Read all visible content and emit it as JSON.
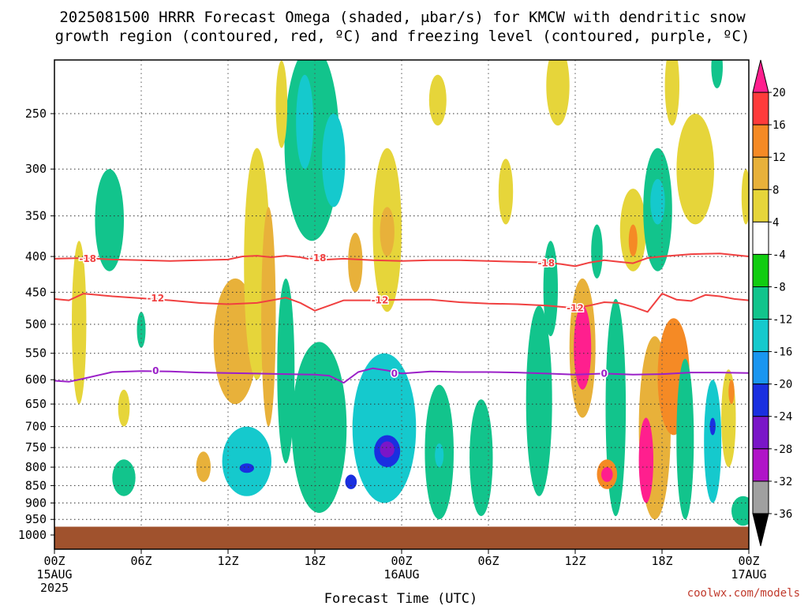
{
  "chart_data": {
    "type": "heatmap",
    "title_line1": "2025081500 HRRR Forecast Omega (shaded, μbar/s) for KMCW with dendritic snow",
    "title_line2": "growth region (contoured, red, ºC) and freezing level (contoured, purple, ºC)",
    "xlabel": "Forecast Time (UTC)",
    "ylabel": "",
    "credit": "coolwx.com/models",
    "x_ticks": [
      {
        "hour": 0,
        "label": "00Z",
        "sub1": "15AUG",
        "sub2": "2025"
      },
      {
        "hour": 6,
        "label": "06Z",
        "sub1": "",
        "sub2": ""
      },
      {
        "hour": 12,
        "label": "12Z",
        "sub1": "",
        "sub2": ""
      },
      {
        "hour": 18,
        "label": "18Z",
        "sub1": "",
        "sub2": ""
      },
      {
        "hour": 24,
        "label": "00Z",
        "sub1": "16AUG",
        "sub2": ""
      },
      {
        "hour": 30,
        "label": "06Z",
        "sub1": "",
        "sub2": ""
      },
      {
        "hour": 36,
        "label": "12Z",
        "sub1": "",
        "sub2": ""
      },
      {
        "hour": 42,
        "label": "18Z",
        "sub1": "",
        "sub2": ""
      },
      {
        "hour": 48,
        "label": "00Z",
        "sub1": "17AUG",
        "sub2": ""
      }
    ],
    "xlim": [
      0,
      48
    ],
    "y_ticks": [
      250,
      300,
      350,
      400,
      450,
      500,
      550,
      600,
      650,
      700,
      750,
      800,
      850,
      900,
      950,
      1000
    ],
    "ylim": [
      1000,
      200
    ],
    "y_scale": "log",
    "grid": true,
    "surface_color": "#a0522d",
    "surface_top_hpa": 973,
    "colorbar": {
      "levels": [
        "20",
        "16",
        "12",
        "8",
        "4",
        "-4",
        "-8",
        "-12",
        "-16",
        "-20",
        "-24",
        "-28",
        "-32",
        "-36"
      ],
      "colors": [
        "#ff1f8e",
        "#ff3b3b",
        "#f58a25",
        "#e8b13a",
        "#e6d53a",
        "#ffffff",
        "#11cc11",
        "#12c48c",
        "#15c9cd",
        "#1a96f0",
        "#1a2fe0",
        "#7a16c8",
        "#b014c8",
        "#a0a0a0",
        "#000000"
      ]
    },
    "series": [
      {
        "name": "-18",
        "color": "#f04040",
        "kind": "dendritic",
        "x": [
          0,
          2,
          4,
          6,
          8,
          10,
          12,
          13,
          14,
          15,
          16,
          17,
          18,
          20,
          22,
          24,
          26,
          28,
          30,
          32,
          34,
          35,
          36,
          37,
          38,
          39,
          40,
          41,
          42,
          44,
          46,
          48
        ],
        "p": [
          403,
          402,
          404,
          405,
          406,
          405,
          404,
          400,
          399,
          401,
          399,
          401,
          405,
          403,
          405,
          406,
          405,
          405,
          406,
          407,
          408,
          410,
          413,
          408,
          405,
          407,
          409,
          402,
          400,
          397,
          396,
          400
        ]
      },
      {
        "name": "-12",
        "color": "#f04040",
        "kind": "dendritic",
        "x": [
          0,
          1,
          2,
          4,
          6,
          8,
          10,
          12,
          14,
          15,
          16,
          17,
          18,
          19,
          20,
          22,
          24,
          26,
          28,
          30,
          32,
          34,
          36,
          37,
          38,
          39,
          40,
          41,
          42,
          43,
          44,
          45,
          46,
          47,
          48
        ],
        "p": [
          460,
          462,
          452,
          456,
          459,
          462,
          466,
          468,
          466,
          462,
          458,
          466,
          478,
          470,
          462,
          462,
          461,
          461,
          465,
          467,
          468,
          470,
          474,
          470,
          465,
          466,
          472,
          480,
          452,
          461,
          463,
          454,
          456,
          460,
          462
        ]
      },
      {
        "name": "0",
        "color": "#9b20c8",
        "kind": "freezing",
        "x": [
          0,
          1,
          2,
          4,
          6,
          8,
          10,
          12,
          14,
          16,
          18,
          19,
          20,
          21,
          22,
          23,
          24,
          26,
          28,
          30,
          32,
          34,
          36,
          38,
          40,
          42,
          44,
          46,
          48
        ],
        "p": [
          602,
          604,
          598,
          585,
          583,
          584,
          586,
          587,
          588,
          589,
          590,
          592,
          606,
          585,
          578,
          582,
          588,
          584,
          585,
          585,
          586,
          588,
          590,
          588,
          590,
          589,
          586,
          586,
          587
        ]
      }
    ],
    "contour_labels": [
      {
        "text": "-18",
        "x": 2.3,
        "p": 403,
        "color": "#f04040"
      },
      {
        "text": "-18",
        "x": 18.2,
        "p": 402,
        "color": "#f04040"
      },
      {
        "text": "-18",
        "x": 34.0,
        "p": 409,
        "color": "#f04040"
      },
      {
        "text": "-12",
        "x": 7.0,
        "p": 459,
        "color": "#f04040"
      },
      {
        "text": "-12",
        "x": 22.5,
        "p": 462,
        "color": "#f04040"
      },
      {
        "text": "-12",
        "x": 36.0,
        "p": 474,
        "color": "#f04040"
      },
      {
        "text": "0",
        "x": 7.0,
        "p": 583,
        "color": "#9b20c8"
      },
      {
        "text": "0",
        "x": 23.5,
        "p": 588,
        "color": "#9b20c8"
      },
      {
        "text": "0",
        "x": 38.0,
        "p": 588,
        "color": "#9b20c8"
      }
    ],
    "omega_features": [
      {
        "x": 3.8,
        "p1": 300,
        "p2": 420,
        "w": 1.0,
        "v": -8
      },
      {
        "x": 1.7,
        "p1": 380,
        "p2": 650,
        "w": 0.5,
        "v": 6
      },
      {
        "x": 4.8,
        "p1": 620,
        "p2": 700,
        "w": 0.4,
        "v": 5
      },
      {
        "x": 4.8,
        "p1": 780,
        "p2": 880,
        "w": 0.8,
        "v": -8
      },
      {
        "x": 6.0,
        "p1": 480,
        "p2": 540,
        "w": 0.3,
        "v": -8
      },
      {
        "x": 10.3,
        "p1": 760,
        "p2": 840,
        "w": 0.5,
        "v": 10
      },
      {
        "x": 12.5,
        "p1": 430,
        "p2": 650,
        "w": 1.5,
        "v": 10
      },
      {
        "x": 14.0,
        "p1": 280,
        "p2": 600,
        "w": 0.9,
        "v": 6
      },
      {
        "x": 14.8,
        "p1": 340,
        "p2": 700,
        "w": 0.5,
        "v": 10
      },
      {
        "x": 13.3,
        "p1": 700,
        "p2": 880,
        "w": 1.7,
        "v": -12
      },
      {
        "x": 13.3,
        "p1": 790,
        "p2": 815,
        "w": 0.5,
        "v": -20
      },
      {
        "x": 16.0,
        "p1": 430,
        "p2": 790,
        "w": 0.6,
        "v": -8
      },
      {
        "x": 17.8,
        "p1": 200,
        "p2": 380,
        "w": 1.9,
        "v": -8
      },
      {
        "x": 17.3,
        "p1": 220,
        "p2": 300,
        "w": 0.6,
        "v": -12
      },
      {
        "x": 19.3,
        "p1": 250,
        "p2": 340,
        "w": 0.8,
        "v": -12
      },
      {
        "x": 18.3,
        "p1": 530,
        "p2": 930,
        "w": 1.9,
        "v": -8
      },
      {
        "x": 20.8,
        "p1": 370,
        "p2": 450,
        "w": 0.5,
        "v": 8
      },
      {
        "x": 21.2,
        "p1": 650,
        "p2": 740,
        "w": 0.6,
        "v": 10
      },
      {
        "x": 21.2,
        "p1": 690,
        "p2": 710,
        "w": 0.3,
        "v": 16
      },
      {
        "x": 23.0,
        "p1": 280,
        "p2": 480,
        "w": 1.0,
        "v": 6
      },
      {
        "x": 23.0,
        "p1": 340,
        "p2": 400,
        "w": 0.5,
        "v": 10
      },
      {
        "x": 22.8,
        "p1": 550,
        "p2": 900,
        "w": 2.2,
        "v": -12
      },
      {
        "x": 23.0,
        "p1": 720,
        "p2": 800,
        "w": 0.9,
        "v": -20
      },
      {
        "x": 23.0,
        "p1": 735,
        "p2": 775,
        "w": 0.5,
        "v": -24
      },
      {
        "x": 20.5,
        "p1": 820,
        "p2": 860,
        "w": 0.4,
        "v": -20
      },
      {
        "x": 26.6,
        "p1": 610,
        "p2": 950,
        "w": 1.0,
        "v": -8
      },
      {
        "x": 26.6,
        "p1": 740,
        "p2": 800,
        "w": 0.3,
        "v": -14
      },
      {
        "x": 29.5,
        "p1": 640,
        "p2": 940,
        "w": 0.8,
        "v": -8
      },
      {
        "x": 33.5,
        "p1": 470,
        "p2": 880,
        "w": 0.9,
        "v": -8
      },
      {
        "x": 34.3,
        "p1": 380,
        "p2": 520,
        "w": 0.5,
        "v": -8
      },
      {
        "x": 36.5,
        "p1": 430,
        "p2": 680,
        "w": 0.9,
        "v": 10
      },
      {
        "x": 36.5,
        "p1": 470,
        "p2": 620,
        "w": 0.6,
        "v": 20
      },
      {
        "x": 37.5,
        "p1": 360,
        "p2": 430,
        "w": 0.4,
        "v": -8
      },
      {
        "x": 38.8,
        "p1": 460,
        "p2": 940,
        "w": 0.7,
        "v": -8
      },
      {
        "x": 38.2,
        "p1": 780,
        "p2": 860,
        "w": 0.7,
        "v": 12
      },
      {
        "x": 38.2,
        "p1": 800,
        "p2": 840,
        "w": 0.4,
        "v": 20
      },
      {
        "x": 40.0,
        "p1": 320,
        "p2": 420,
        "w": 0.9,
        "v": 6
      },
      {
        "x": 40.0,
        "p1": 360,
        "p2": 400,
        "w": 0.3,
        "v": 12
      },
      {
        "x": 41.7,
        "p1": 280,
        "p2": 420,
        "w": 1.0,
        "v": -8
      },
      {
        "x": 41.7,
        "p1": 310,
        "p2": 360,
        "w": 0.5,
        "v": -12
      },
      {
        "x": 41.5,
        "p1": 520,
        "p2": 950,
        "w": 1.1,
        "v": 10
      },
      {
        "x": 40.9,
        "p1": 680,
        "p2": 900,
        "w": 0.5,
        "v": 20
      },
      {
        "x": 42.8,
        "p1": 490,
        "p2": 720,
        "w": 1.1,
        "v": 12
      },
      {
        "x": 44.3,
        "p1": 250,
        "p2": 360,
        "w": 1.3,
        "v": 6
      },
      {
        "x": 43.6,
        "p1": 560,
        "p2": 950,
        "w": 0.6,
        "v": -8
      },
      {
        "x": 45.5,
        "p1": 600,
        "p2": 900,
        "w": 0.6,
        "v": -12
      },
      {
        "x": 45.5,
        "p1": 680,
        "p2": 720,
        "w": 0.2,
        "v": -20
      },
      {
        "x": 46.6,
        "p1": 580,
        "p2": 800,
        "w": 0.5,
        "v": 6
      },
      {
        "x": 46.8,
        "p1": 600,
        "p2": 650,
        "w": 0.2,
        "v": 12
      },
      {
        "x": 47.6,
        "p1": 880,
        "p2": 970,
        "w": 0.8,
        "v": -8
      },
      {
        "x": 47.8,
        "p1": 300,
        "p2": 360,
        "w": 0.3,
        "v": 6
      },
      {
        "x": 34.8,
        "p1": 200,
        "p2": 260,
        "w": 0.8,
        "v": 6
      },
      {
        "x": 26.5,
        "p1": 220,
        "p2": 260,
        "w": 0.6,
        "v": 6
      },
      {
        "x": 15.7,
        "p1": 210,
        "p2": 280,
        "w": 0.4,
        "v": 6
      },
      {
        "x": 31.2,
        "p1": 290,
        "p2": 360,
        "w": 0.5,
        "v": 6
      },
      {
        "x": 42.7,
        "p1": 200,
        "p2": 260,
        "w": 0.5,
        "v": 6
      },
      {
        "x": 45.8,
        "p1": 200,
        "p2": 230,
        "w": 0.4,
        "v": -8
      }
    ]
  }
}
